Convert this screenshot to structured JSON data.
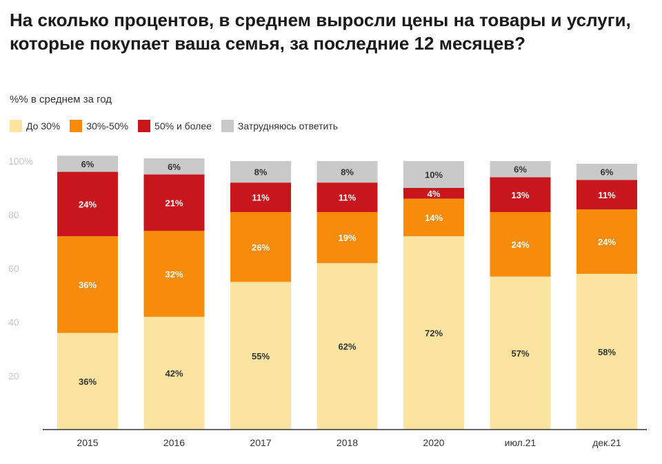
{
  "title": "На сколько процентов, в среднем выросли цены на товары и услуги, которые покупает ваша семья, за последние 12 месяцев?",
  "subtitle": "%% в среднем за год",
  "legend": [
    {
      "label": "До 30%",
      "color": "#fbe3a0"
    },
    {
      "label": "30%-50%",
      "color": "#f68c0a"
    },
    {
      "label": "50% и более",
      "color": "#c8161d"
    },
    {
      "label": "Затрудняюсь ответить",
      "color": "#c9c9c9"
    }
  ],
  "chart_data": {
    "type": "bar",
    "stacked": true,
    "categories": [
      "2015",
      "2016",
      "2017",
      "2018",
      "2020",
      "июл.21",
      "дек.21"
    ],
    "series": [
      {
        "name": "До 30%",
        "color": "#fbe3a0",
        "label_color": "#333333",
        "values": [
          36,
          42,
          55,
          62,
          72,
          57,
          58
        ]
      },
      {
        "name": "30%-50%",
        "color": "#f68c0a",
        "label_color": "#ffffff",
        "values": [
          36,
          32,
          26,
          19,
          14,
          24,
          24
        ]
      },
      {
        "name": "50% и более",
        "color": "#c8161d",
        "label_color": "#ffffff",
        "values": [
          24,
          21,
          11,
          11,
          4,
          13,
          11
        ]
      },
      {
        "name": "Затрудняюсь ответить",
        "color": "#c9c9c9",
        "label_color": "#333333",
        "values": [
          6,
          6,
          8,
          8,
          10,
          6,
          6
        ]
      }
    ],
    "y_ticks": [
      "20",
      "40",
      "60",
      "80",
      "100%"
    ],
    "y_tick_values": [
      20,
      40,
      60,
      80,
      100
    ],
    "ylim": [
      0,
      100
    ],
    "grid": false,
    "legend_position": "top-left"
  }
}
